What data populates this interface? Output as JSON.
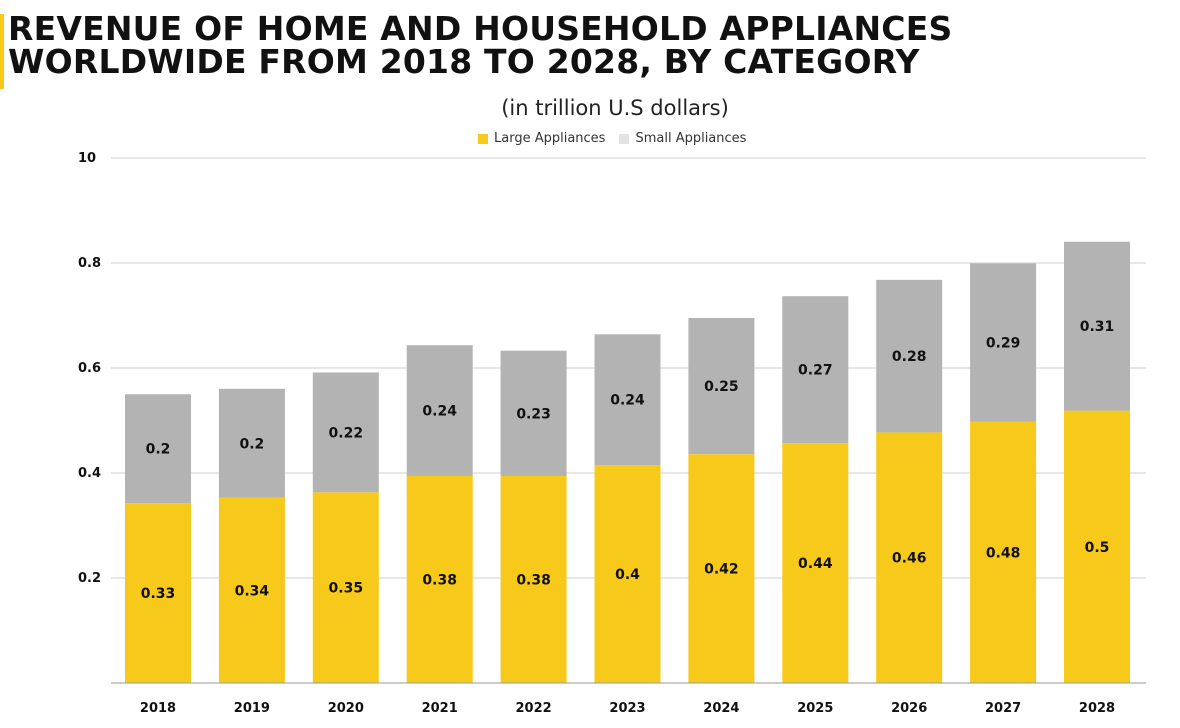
{
  "chart_data": {
    "type": "bar",
    "stacked": true,
    "title_line1": "REVENUE OF HOME AND HOUSEHOLD APPLIANCES",
    "title_line2": "WORLDWIDE FROM 2018 TO 2028, BY CATEGORY",
    "subtitle": "(in trillion U.S dollars)",
    "categories": [
      "2018",
      "2019",
      "2020",
      "2021",
      "2022",
      "2023",
      "2024",
      "2025",
      "2026",
      "2027",
      "2028"
    ],
    "series": [
      {
        "name": "Large Appliances",
        "color": "#f7c91a",
        "values": [
          0.33,
          0.34,
          0.35,
          0.38,
          0.38,
          0.4,
          0.42,
          0.44,
          0.46,
          0.48,
          0.5
        ]
      },
      {
        "name": "Small Appliances",
        "color": "#b3b3b3",
        "values": [
          0.2,
          0.2,
          0.22,
          0.24,
          0.23,
          0.24,
          0.25,
          0.27,
          0.28,
          0.29,
          0.31
        ]
      }
    ],
    "yticks": [
      "0.2",
      "0.4",
      "0.6",
      "0.8",
      "10"
    ],
    "grid": true,
    "legend_position": "top-center"
  }
}
